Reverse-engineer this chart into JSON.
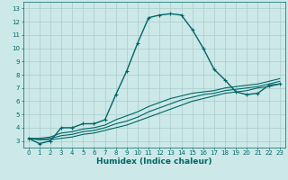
{
  "xlabel": "Humidex (Indice chaleur)",
  "ylabel": "",
  "bg_color": "#cce8e8",
  "grid_color": "#aacccc",
  "line_color": "#006666",
  "xlim": [
    -0.5,
    23.5
  ],
  "ylim": [
    2.5,
    13.5
  ],
  "xticks": [
    0,
    1,
    2,
    3,
    4,
    5,
    6,
    7,
    8,
    9,
    10,
    11,
    12,
    13,
    14,
    15,
    16,
    17,
    18,
    19,
    20,
    21,
    22,
    23
  ],
  "yticks": [
    3,
    4,
    5,
    6,
    7,
    8,
    9,
    10,
    11,
    12,
    13
  ],
  "series": [
    {
      "x": [
        0,
        1,
        2,
        3,
        4,
        5,
        6,
        7,
        8,
        9,
        10,
        11,
        12,
        13,
        14,
        15,
        16,
        17,
        18,
        19,
        20,
        21,
        22,
        23
      ],
      "y": [
        3.2,
        2.8,
        3.0,
        4.0,
        4.0,
        4.3,
        4.3,
        4.6,
        6.5,
        8.3,
        10.4,
        12.3,
        12.5,
        12.6,
        12.5,
        11.4,
        10.0,
        8.4,
        7.6,
        6.7,
        6.5,
        6.6,
        7.2,
        7.3
      ],
      "marker": true,
      "lw": 1.0
    },
    {
      "x": [
        0,
        1,
        2,
        3,
        4,
        5,
        6,
        7,
        8,
        9,
        10,
        11,
        12,
        13,
        14,
        15,
        16,
        17,
        18,
        19,
        20,
        21,
        22,
        23
      ],
      "y": [
        3.2,
        3.1,
        3.1,
        3.2,
        3.3,
        3.5,
        3.6,
        3.8,
        4.0,
        4.2,
        4.5,
        4.8,
        5.1,
        5.4,
        5.7,
        6.0,
        6.2,
        6.4,
        6.6,
        6.7,
        6.8,
        7.0,
        7.1,
        7.3
      ],
      "marker": false,
      "lw": 0.8
    },
    {
      "x": [
        0,
        1,
        2,
        3,
        4,
        5,
        6,
        7,
        8,
        9,
        10,
        11,
        12,
        13,
        14,
        15,
        16,
        17,
        18,
        19,
        20,
        21,
        22,
        23
      ],
      "y": [
        3.2,
        3.1,
        3.2,
        3.4,
        3.5,
        3.7,
        3.8,
        4.0,
        4.3,
        4.5,
        4.8,
        5.2,
        5.5,
        5.8,
        6.1,
        6.3,
        6.5,
        6.6,
        6.8,
        6.9,
        7.0,
        7.1,
        7.3,
        7.5
      ],
      "marker": false,
      "lw": 0.8
    },
    {
      "x": [
        0,
        1,
        2,
        3,
        4,
        5,
        6,
        7,
        8,
        9,
        10,
        11,
        12,
        13,
        14,
        15,
        16,
        17,
        18,
        19,
        20,
        21,
        22,
        23
      ],
      "y": [
        3.2,
        3.2,
        3.3,
        3.6,
        3.7,
        3.9,
        4.0,
        4.2,
        4.6,
        4.9,
        5.2,
        5.6,
        5.9,
        6.2,
        6.4,
        6.6,
        6.7,
        6.8,
        7.0,
        7.1,
        7.2,
        7.3,
        7.5,
        7.7
      ],
      "marker": false,
      "lw": 0.8
    }
  ],
  "tick_fontsize": 5.0,
  "xlabel_fontsize": 6.5
}
